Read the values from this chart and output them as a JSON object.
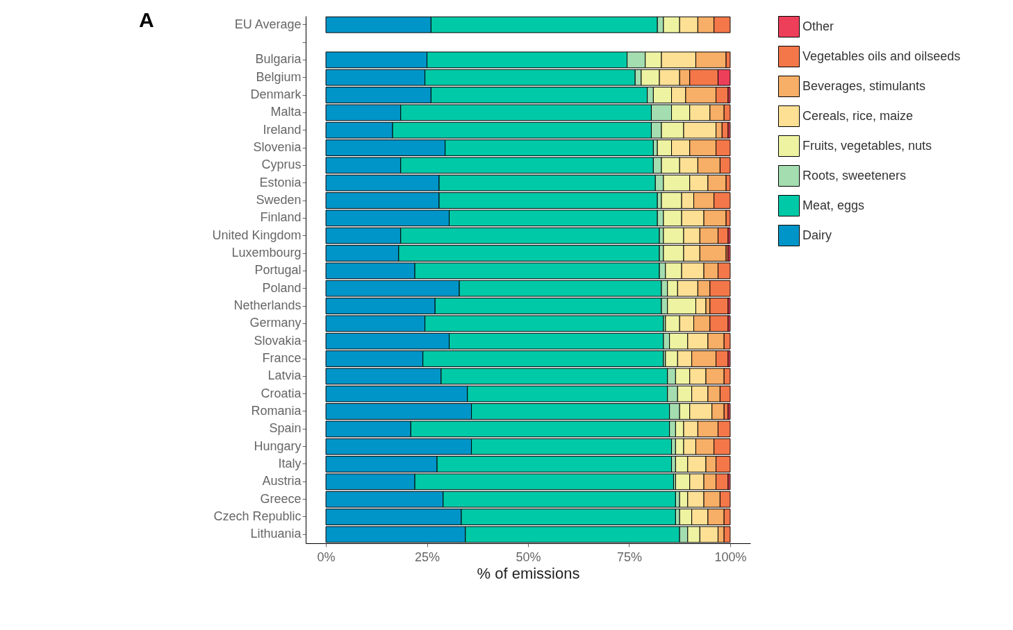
{
  "chart_data": {
    "type": "bar",
    "orientation": "horizontal",
    "stacked": true,
    "xlabel": "% of emissions",
    "annotations": [
      "A"
    ],
    "legend": "right",
    "grid": false,
    "xlim": [
      -5,
      105
    ],
    "xticks": [
      {
        "value": 0,
        "label": "0%"
      },
      {
        "value": 25,
        "label": "25%"
      },
      {
        "value": 50,
        "label": "50%"
      },
      {
        "value": 75,
        "label": "75%"
      },
      {
        "value": 100,
        "label": "100%"
      }
    ],
    "categories": [
      "EU Average",
      null,
      "Bulgaria",
      "Belgium",
      "Denmark",
      "Malta",
      "Ireland",
      "Slovenia",
      "Cyprus",
      "Estonia",
      "Sweden",
      "Finland",
      "United Kingdom",
      "Luxembourg",
      "Portugal",
      "Poland",
      "Netherlands",
      "Germany",
      "Slovakia",
      "France",
      "Latvia",
      "Croatia",
      "Romania",
      "Spain",
      "Hungary",
      "Italy",
      "Austria",
      "Greece",
      "Czech Republic",
      "Lithuania"
    ],
    "series": [
      {
        "name": "Dairy",
        "color": "#0095c8",
        "values": [
          26,
          null,
          25,
          24.5,
          26,
          18.5,
          16.5,
          29.5,
          18.5,
          28,
          28,
          30.5,
          18.5,
          18,
          22,
          33,
          27,
          24.5,
          30.5,
          24,
          28.5,
          35,
          36,
          21,
          36,
          27.5,
          22,
          29,
          33.5,
          34.5
        ]
      },
      {
        "name": "Meat, eggs",
        "color": "#00c9a7",
        "values": [
          56,
          null,
          49.5,
          52,
          53.5,
          62,
          64,
          51.5,
          62.5,
          53.5,
          54,
          51.5,
          64,
          64.5,
          60.5,
          50,
          56,
          59,
          53,
          59.5,
          56,
          49.5,
          49,
          64,
          49.5,
          58,
          64,
          57.5,
          53,
          53
        ]
      },
      {
        "name": "Roots, sweeteners",
        "color": "#a3ddb0",
        "values": [
          1.5,
          null,
          4.5,
          1.5,
          1.5,
          5,
          2.5,
          1,
          2,
          2,
          1,
          1.5,
          1,
          1,
          1.5,
          1.5,
          1.5,
          0.5,
          1.5,
          0.5,
          2,
          2.5,
          2.5,
          1.5,
          1,
          1,
          0.5,
          1,
          1,
          2
        ]
      },
      {
        "name": "Fruits, vegetables, nuts",
        "color": "#eef3a2",
        "values": [
          4,
          null,
          4,
          4.5,
          4.5,
          4.5,
          5.5,
          3.5,
          4.5,
          6.5,
          5,
          4.5,
          5,
          5,
          4,
          2.5,
          7,
          3.5,
          4.5,
          3,
          3.5,
          3.5,
          2.5,
          2,
          2,
          3,
          3.5,
          2,
          3,
          3
        ]
      },
      {
        "name": "Cereals, rice, maize",
        "color": "#fde094",
        "values": [
          4.5,
          null,
          8.5,
          5,
          3.5,
          5,
          8,
          4.5,
          4.5,
          4.5,
          3,
          5.5,
          4,
          4,
          5.5,
          5,
          2.5,
          3.5,
          5,
          3.5,
          4,
          4,
          5.5,
          3.5,
          3,
          4.5,
          3.5,
          4,
          4,
          4.5
        ]
      },
      {
        "name": "Beverages, stimulants",
        "color": "#f7ae66",
        "values": [
          4,
          null,
          7.5,
          2.5,
          7.5,
          3.5,
          1.5,
          6.5,
          5.5,
          4.5,
          5,
          5.5,
          4.5,
          6.5,
          3.5,
          3,
          1,
          4,
          4,
          6,
          4.5,
          3,
          3,
          5,
          4.5,
          2.5,
          3,
          4,
          4,
          1.5
        ]
      },
      {
        "name": "Vegetables oils and oilseeds",
        "color": "#f4774a",
        "values": [
          4,
          null,
          1,
          7,
          3,
          1.5,
          1.5,
          3.5,
          2.5,
          1,
          4,
          1,
          2.5,
          0.5,
          3,
          5,
          4.5,
          4.5,
          1.5,
          3,
          1.5,
          2.5,
          1,
          3,
          4,
          3.5,
          3,
          2.5,
          1.5,
          1.5
        ]
      },
      {
        "name": "Other",
        "color": "#ee3f5a",
        "values": [
          null,
          null,
          null,
          3,
          0.5,
          null,
          0.5,
          null,
          null,
          null,
          null,
          null,
          0.5,
          0.5,
          null,
          null,
          0.5,
          0.5,
          null,
          0.5,
          null,
          null,
          0.5,
          null,
          null,
          null,
          0.5,
          null,
          null,
          null
        ]
      }
    ]
  }
}
